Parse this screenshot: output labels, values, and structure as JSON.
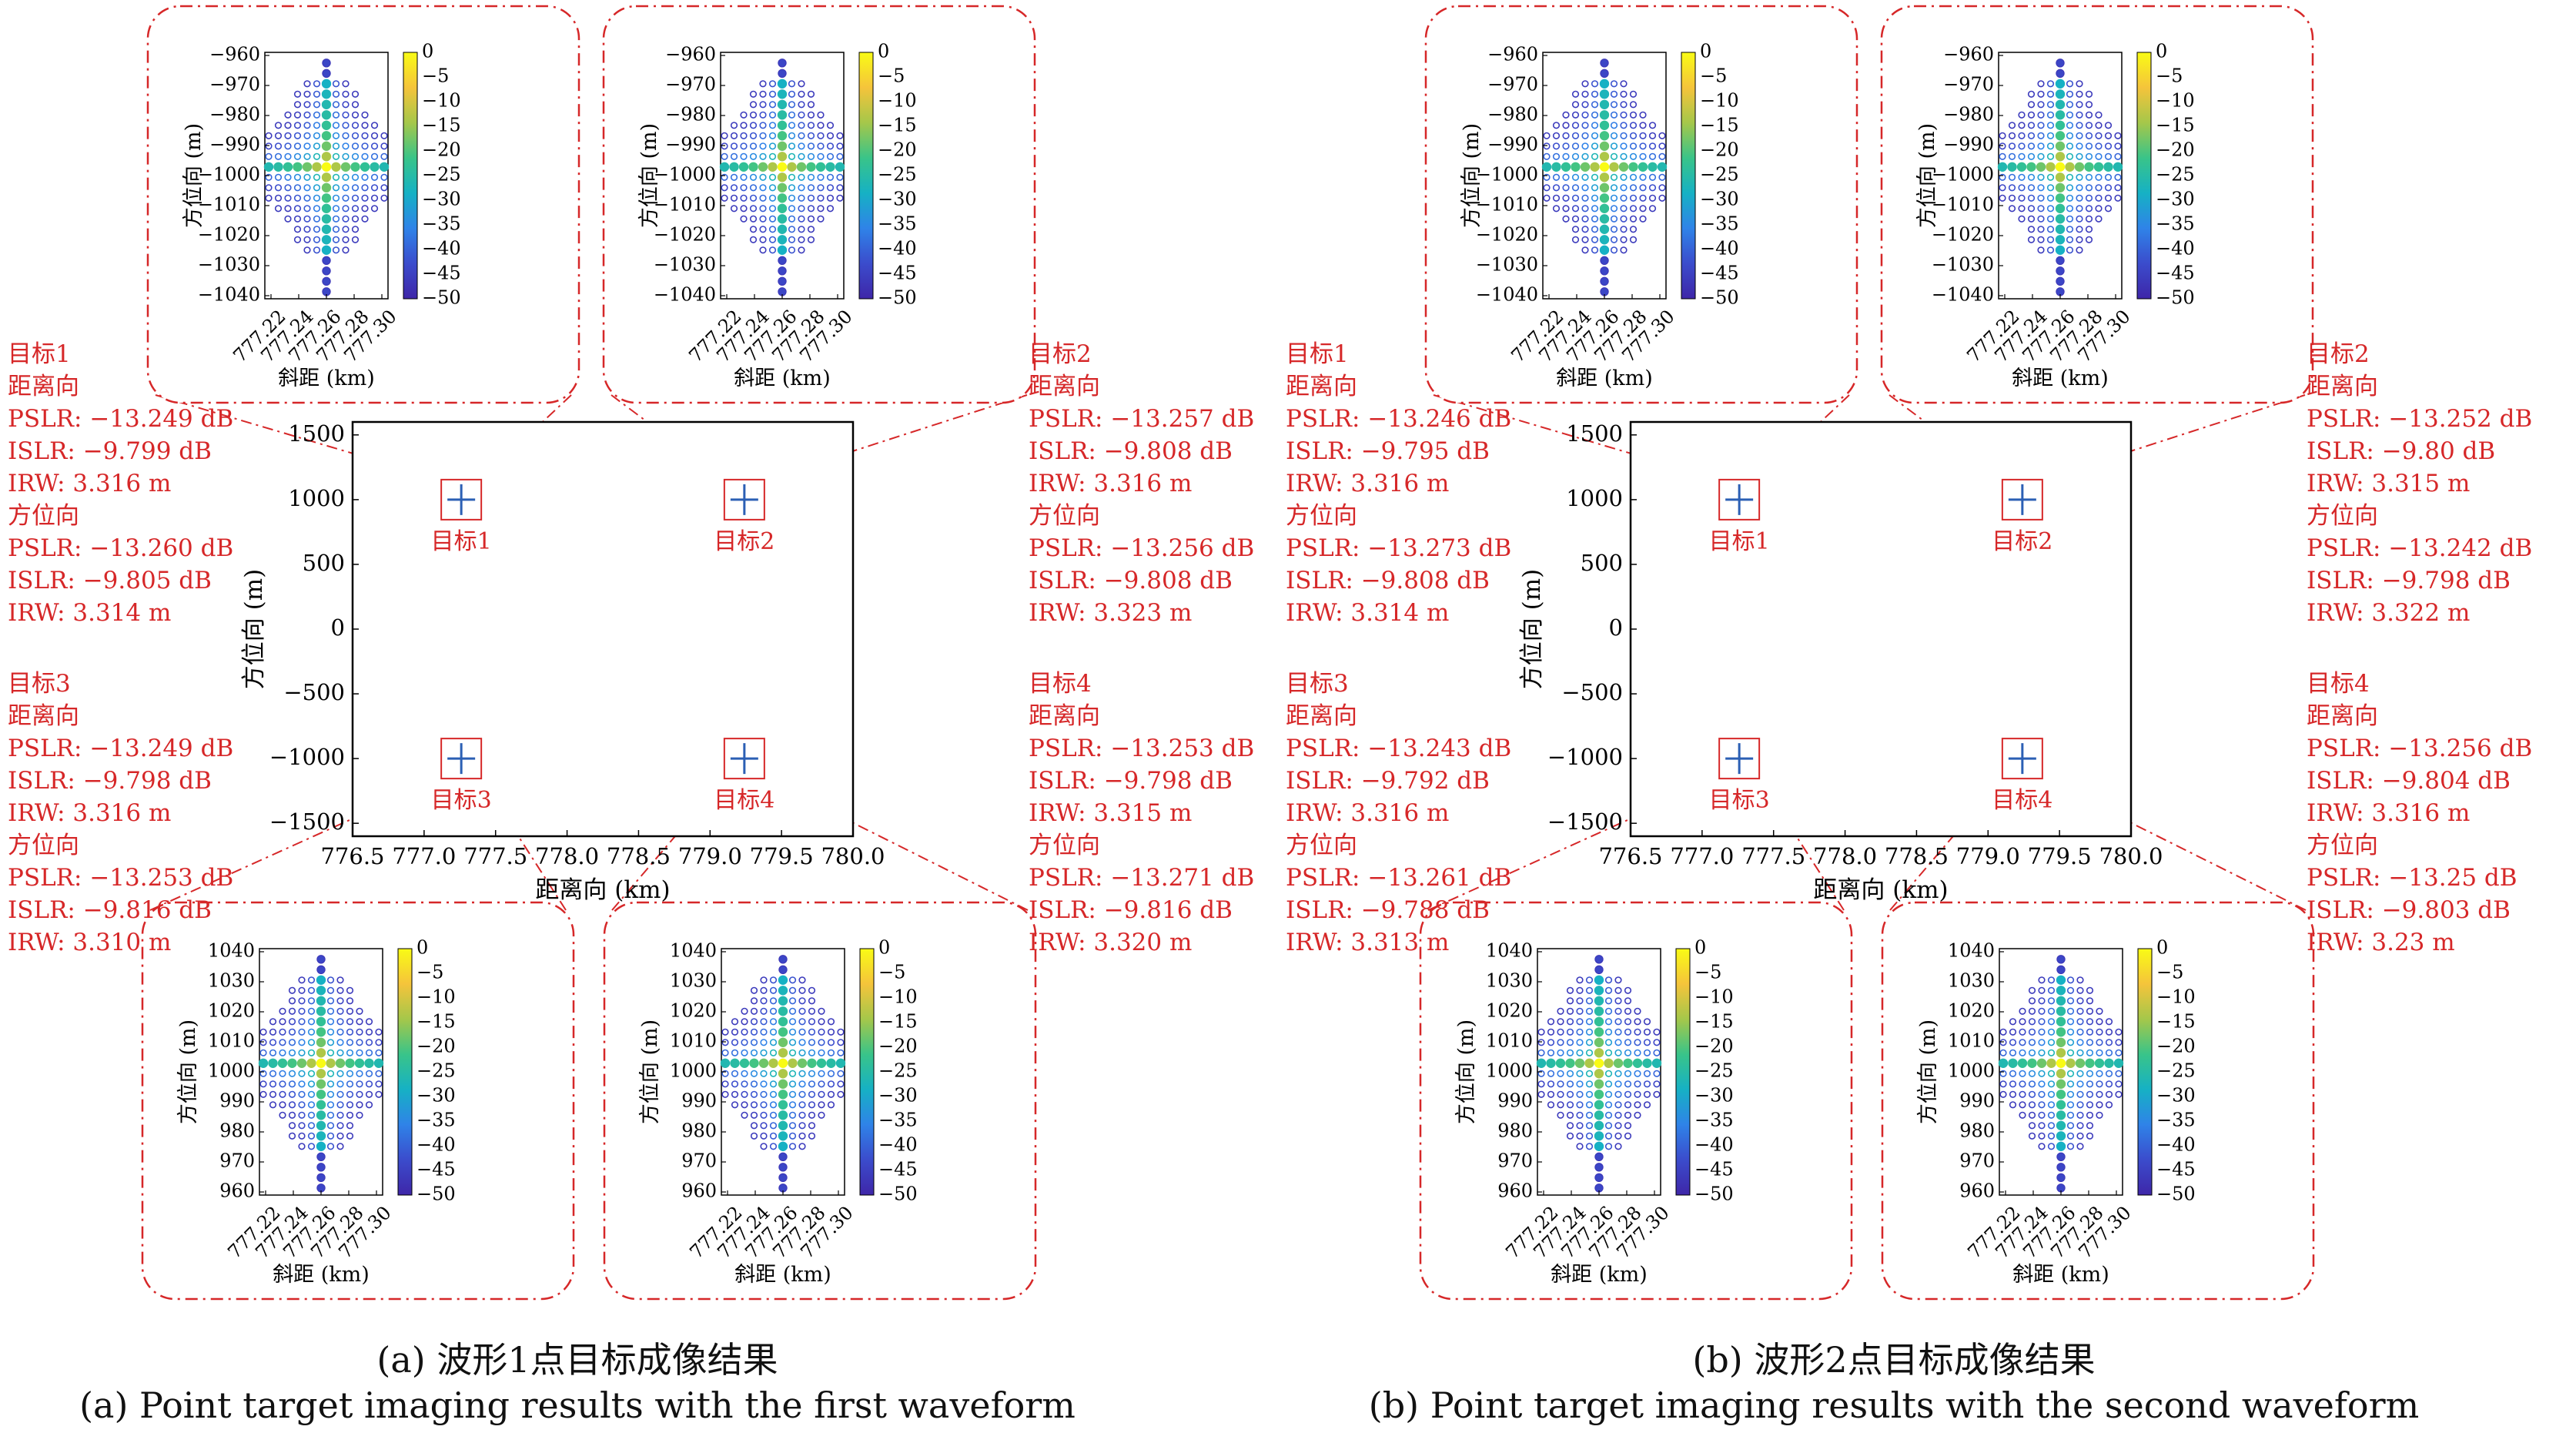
{
  "figure": {
    "captions": {
      "a_cn": "(a) 波形1点目标成像结果",
      "a_en": "(a) Point target imaging results with the first waveform",
      "b_cn": "(b) 波形2点目标成像结果",
      "b_en": "(b) Point target imaging results with the second waveform"
    },
    "colors": {
      "annotation": "#d62728",
      "axis": "#000000",
      "marker": "#2b5fb4",
      "colormap": [
        "#3e26a8",
        "#3b4ccc",
        "#2f83e8",
        "#16b1c4",
        "#39c489",
        "#a5c74a",
        "#f5c43b",
        "#f9fb15"
      ]
    }
  },
  "chart_data": [
    {
      "panel": "a",
      "type": "scatter",
      "xlabel": "距离向 (km)",
      "ylabel": "方位向 (m)",
      "xlim": [
        776.5,
        780.0
      ],
      "ylim": [
        -1600,
        1600
      ],
      "xticks": [
        "776.5",
        "777.0",
        "777.5",
        "778.0",
        "778.5",
        "779.0",
        "779.5",
        "780.0"
      ],
      "yticks": [
        "1500",
        "1000",
        "500",
        "0",
        "−500",
        "−1000",
        "−1500"
      ],
      "targets": [
        {
          "name": "目标1",
          "x": 777.26,
          "y": 1000,
          "side": "left",
          "range_label": "距离向",
          "az_label": "方位向",
          "range": {
            "pslr": "PSLR: −13.249 dB",
            "islr": "ISLR: −9.799 dB",
            "irw": "IRW: 3.316 m"
          },
          "azimuth": {
            "pslr": "PSLR: −13.260 dB",
            "islr": "ISLR: −9.805 dB",
            "irw": "IRW: 3.314 m"
          }
        },
        {
          "name": "目标2",
          "x": 779.24,
          "y": 1000,
          "side": "right",
          "range_label": "距离向",
          "az_label": "方位向",
          "range": {
            "pslr": "PSLR: −13.257 dB",
            "islr": "ISLR: −9.808 dB",
            "irw": "IRW: 3.316 m"
          },
          "azimuth": {
            "pslr": "PSLR: −13.256 dB",
            "islr": "ISLR: −9.808 dB",
            "irw": "IRW: 3.323 m"
          }
        },
        {
          "name": "目标3",
          "x": 777.26,
          "y": -1000,
          "side": "left",
          "range_label": "距离向",
          "az_label": "方位向",
          "range": {
            "pslr": "PSLR: −13.249 dB",
            "islr": "ISLR: −9.798 dB",
            "irw": "IRW: 3.316 m"
          },
          "azimuth": {
            "pslr": "PSLR: −13.253 dB",
            "islr": "ISLR: −9.816 dB",
            "irw": "IRW: 3.310 m"
          }
        },
        {
          "name": "目标4",
          "x": 779.24,
          "y": -1000,
          "side": "right",
          "range_label": "距离向",
          "az_label": "方位向",
          "range": {
            "pslr": "PSLR: −13.253 dB",
            "islr": "ISLR: −9.798 dB",
            "irw": "IRW: 3.315 m"
          },
          "azimuth": {
            "pslr": "PSLR: −13.271 dB",
            "islr": "ISLR: −9.816 dB",
            "irw": "IRW: 3.320 m"
          }
        }
      ],
      "insets": [
        {
          "target": "目标1",
          "type": "heatmap",
          "xlabel": "斜距 (km)",
          "ylabel": "方位向 (m)",
          "xticks": [
            "777.22",
            "777.24",
            "777.26",
            "777.28",
            "777.30"
          ],
          "yticks": [
            "−960",
            "−970",
            "−980",
            "−990",
            "−1000",
            "−1010",
            "−1020",
            "−1030",
            "−1040"
          ],
          "colorbar": [
            "0",
            "−5",
            "−10",
            "−15",
            "−20",
            "−25",
            "−30",
            "−35",
            "−40",
            "−45",
            "−50"
          ]
        },
        {
          "target": "目标2",
          "type": "heatmap",
          "xlabel": "斜距 (km)",
          "ylabel": "方位向 (m)",
          "xticks": [
            "777.22",
            "777.24",
            "777.26",
            "777.28",
            "777.30"
          ],
          "yticks": [
            "−960",
            "−970",
            "−980",
            "−990",
            "−1000",
            "−1010",
            "−1020",
            "−1030",
            "−1040"
          ],
          "colorbar": [
            "0",
            "−5",
            "−10",
            "−15",
            "−20",
            "−25",
            "−30",
            "−35",
            "−40",
            "−45",
            "−50"
          ]
        },
        {
          "target": "目标3",
          "type": "heatmap",
          "xlabel": "斜距 (km)",
          "ylabel": "方位向 (m)",
          "xticks": [
            "777.22",
            "777.24",
            "777.26",
            "777.28",
            "777.30"
          ],
          "yticks": [
            "1040",
            "1030",
            "1020",
            "1010",
            "1000",
            "990",
            "980",
            "970",
            "960"
          ],
          "colorbar": [
            "0",
            "−5",
            "−10",
            "−15",
            "−20",
            "−25",
            "−30",
            "−35",
            "−40",
            "−45",
            "−50"
          ]
        },
        {
          "target": "目标4",
          "type": "heatmap",
          "xlabel": "斜距 (km)",
          "ylabel": "方位向 (m)",
          "xticks": [
            "777.22",
            "777.24",
            "777.26",
            "777.28",
            "777.30"
          ],
          "yticks": [
            "1040",
            "1030",
            "1020",
            "1010",
            "1000",
            "990",
            "980",
            "970",
            "960"
          ],
          "colorbar": [
            "0",
            "−5",
            "−10",
            "−15",
            "−20",
            "−25",
            "−30",
            "−35",
            "−40",
            "−45",
            "−50"
          ]
        }
      ]
    },
    {
      "panel": "b",
      "type": "scatter",
      "xlabel": "距离向 (km)",
      "ylabel": "方位向 (m)",
      "xlim": [
        776.5,
        780.0
      ],
      "ylim": [
        -1600,
        1600
      ],
      "xticks": [
        "776.5",
        "777.0",
        "777.5",
        "778.0",
        "778.5",
        "779.0",
        "779.5",
        "780.0"
      ],
      "yticks": [
        "1500",
        "1000",
        "500",
        "0",
        "−500",
        "−1000",
        "−1500"
      ],
      "targets": [
        {
          "name": "目标1",
          "x": 777.26,
          "y": 1000,
          "side": "left",
          "range_label": "距离向",
          "az_label": "方位向",
          "range": {
            "pslr": "PSLR: −13.246 dB",
            "islr": "ISLR: −9.795 dB",
            "irw": "IRW: 3.316 m"
          },
          "azimuth": {
            "pslr": "PSLR: −13.273 dB",
            "islr": "ISLR: −9.808 dB",
            "irw": "IRW: 3.314 m"
          }
        },
        {
          "name": "目标2",
          "x": 779.24,
          "y": 1000,
          "side": "right",
          "range_label": "距离向",
          "az_label": "方位向",
          "range": {
            "pslr": "PSLR: −13.252 dB",
            "islr": "ISLR: −9.80 dB",
            "irw": "IRW: 3.315 m"
          },
          "azimuth": {
            "pslr": "PSLR: −13.242 dB",
            "islr": "ISLR: −9.798 dB",
            "irw": "IRW: 3.322 m"
          }
        },
        {
          "name": "目标3",
          "x": 777.26,
          "y": -1000,
          "side": "left",
          "range_label": "距离向",
          "az_label": "方位向",
          "range": {
            "pslr": "PSLR: −13.243 dB",
            "islr": "ISLR: −9.792 dB",
            "irw": "IRW: 3.316 m"
          },
          "azimuth": {
            "pslr": "PSLR: −13.261 dB",
            "islr": "ISLR: −9.788 dB",
            "irw": "IRW: 3.313 m"
          }
        },
        {
          "name": "目标4",
          "x": 779.24,
          "y": -1000,
          "side": "right",
          "range_label": "距离向",
          "az_label": "方位向",
          "range": {
            "pslr": "PSLR: −13.256 dB",
            "islr": "ISLR: −9.804 dB",
            "irw": "IRW: 3.316 m"
          },
          "azimuth": {
            "pslr": "PSLR: −13.25 dB",
            "islr": "ISLR: −9.803 dB",
            "irw": "IRW: 3.23 m"
          }
        }
      ],
      "insets": [
        {
          "target": "目标1",
          "type": "heatmap",
          "xlabel": "斜距 (km)",
          "ylabel": "方位向 (m)",
          "xticks": [
            "777.22",
            "777.24",
            "777.26",
            "777.28",
            "777.30"
          ],
          "yticks": [
            "−960",
            "−970",
            "−980",
            "−990",
            "−1000",
            "−1010",
            "−1020",
            "−1030",
            "−1040"
          ],
          "colorbar": [
            "0",
            "−5",
            "−10",
            "−15",
            "−20",
            "−25",
            "−30",
            "−35",
            "−40",
            "−45",
            "−50"
          ]
        },
        {
          "target": "目标2",
          "type": "heatmap",
          "xlabel": "斜距 (km)",
          "ylabel": "方位向 (m)",
          "xticks": [
            "777.22",
            "777.24",
            "777.26",
            "777.28",
            "777.30"
          ],
          "yticks": [
            "−960",
            "−970",
            "−980",
            "−990",
            "−1000",
            "−1010",
            "−1020",
            "−1030",
            "−1040"
          ],
          "colorbar": [
            "0",
            "−5",
            "−10",
            "−15",
            "−20",
            "−25",
            "−30",
            "−35",
            "−40",
            "−45",
            "−50"
          ]
        },
        {
          "target": "目标3",
          "type": "heatmap",
          "xlabel": "斜距 (km)",
          "ylabel": "方位向 (m)",
          "xticks": [
            "777.22",
            "777.24",
            "777.26",
            "777.28",
            "777.30"
          ],
          "yticks": [
            "1040",
            "1030",
            "1020",
            "1010",
            "1000",
            "990",
            "980",
            "970",
            "960"
          ],
          "colorbar": [
            "0",
            "−5",
            "−10",
            "−15",
            "−20",
            "−25",
            "−30",
            "−35",
            "−40",
            "−45",
            "−50"
          ]
        },
        {
          "target": "目标4",
          "type": "heatmap",
          "xlabel": "斜距 (km)",
          "ylabel": "方位向 (m)",
          "xticks": [
            "777.22",
            "777.24",
            "777.26",
            "777.28",
            "777.30"
          ],
          "yticks": [
            "1040",
            "1030",
            "1020",
            "1010",
            "1000",
            "990",
            "980",
            "970",
            "960"
          ],
          "colorbar": [
            "0",
            "−5",
            "−10",
            "−15",
            "−20",
            "−25",
            "−30",
            "−35",
            "−40",
            "−45",
            "−50"
          ]
        }
      ]
    }
  ]
}
